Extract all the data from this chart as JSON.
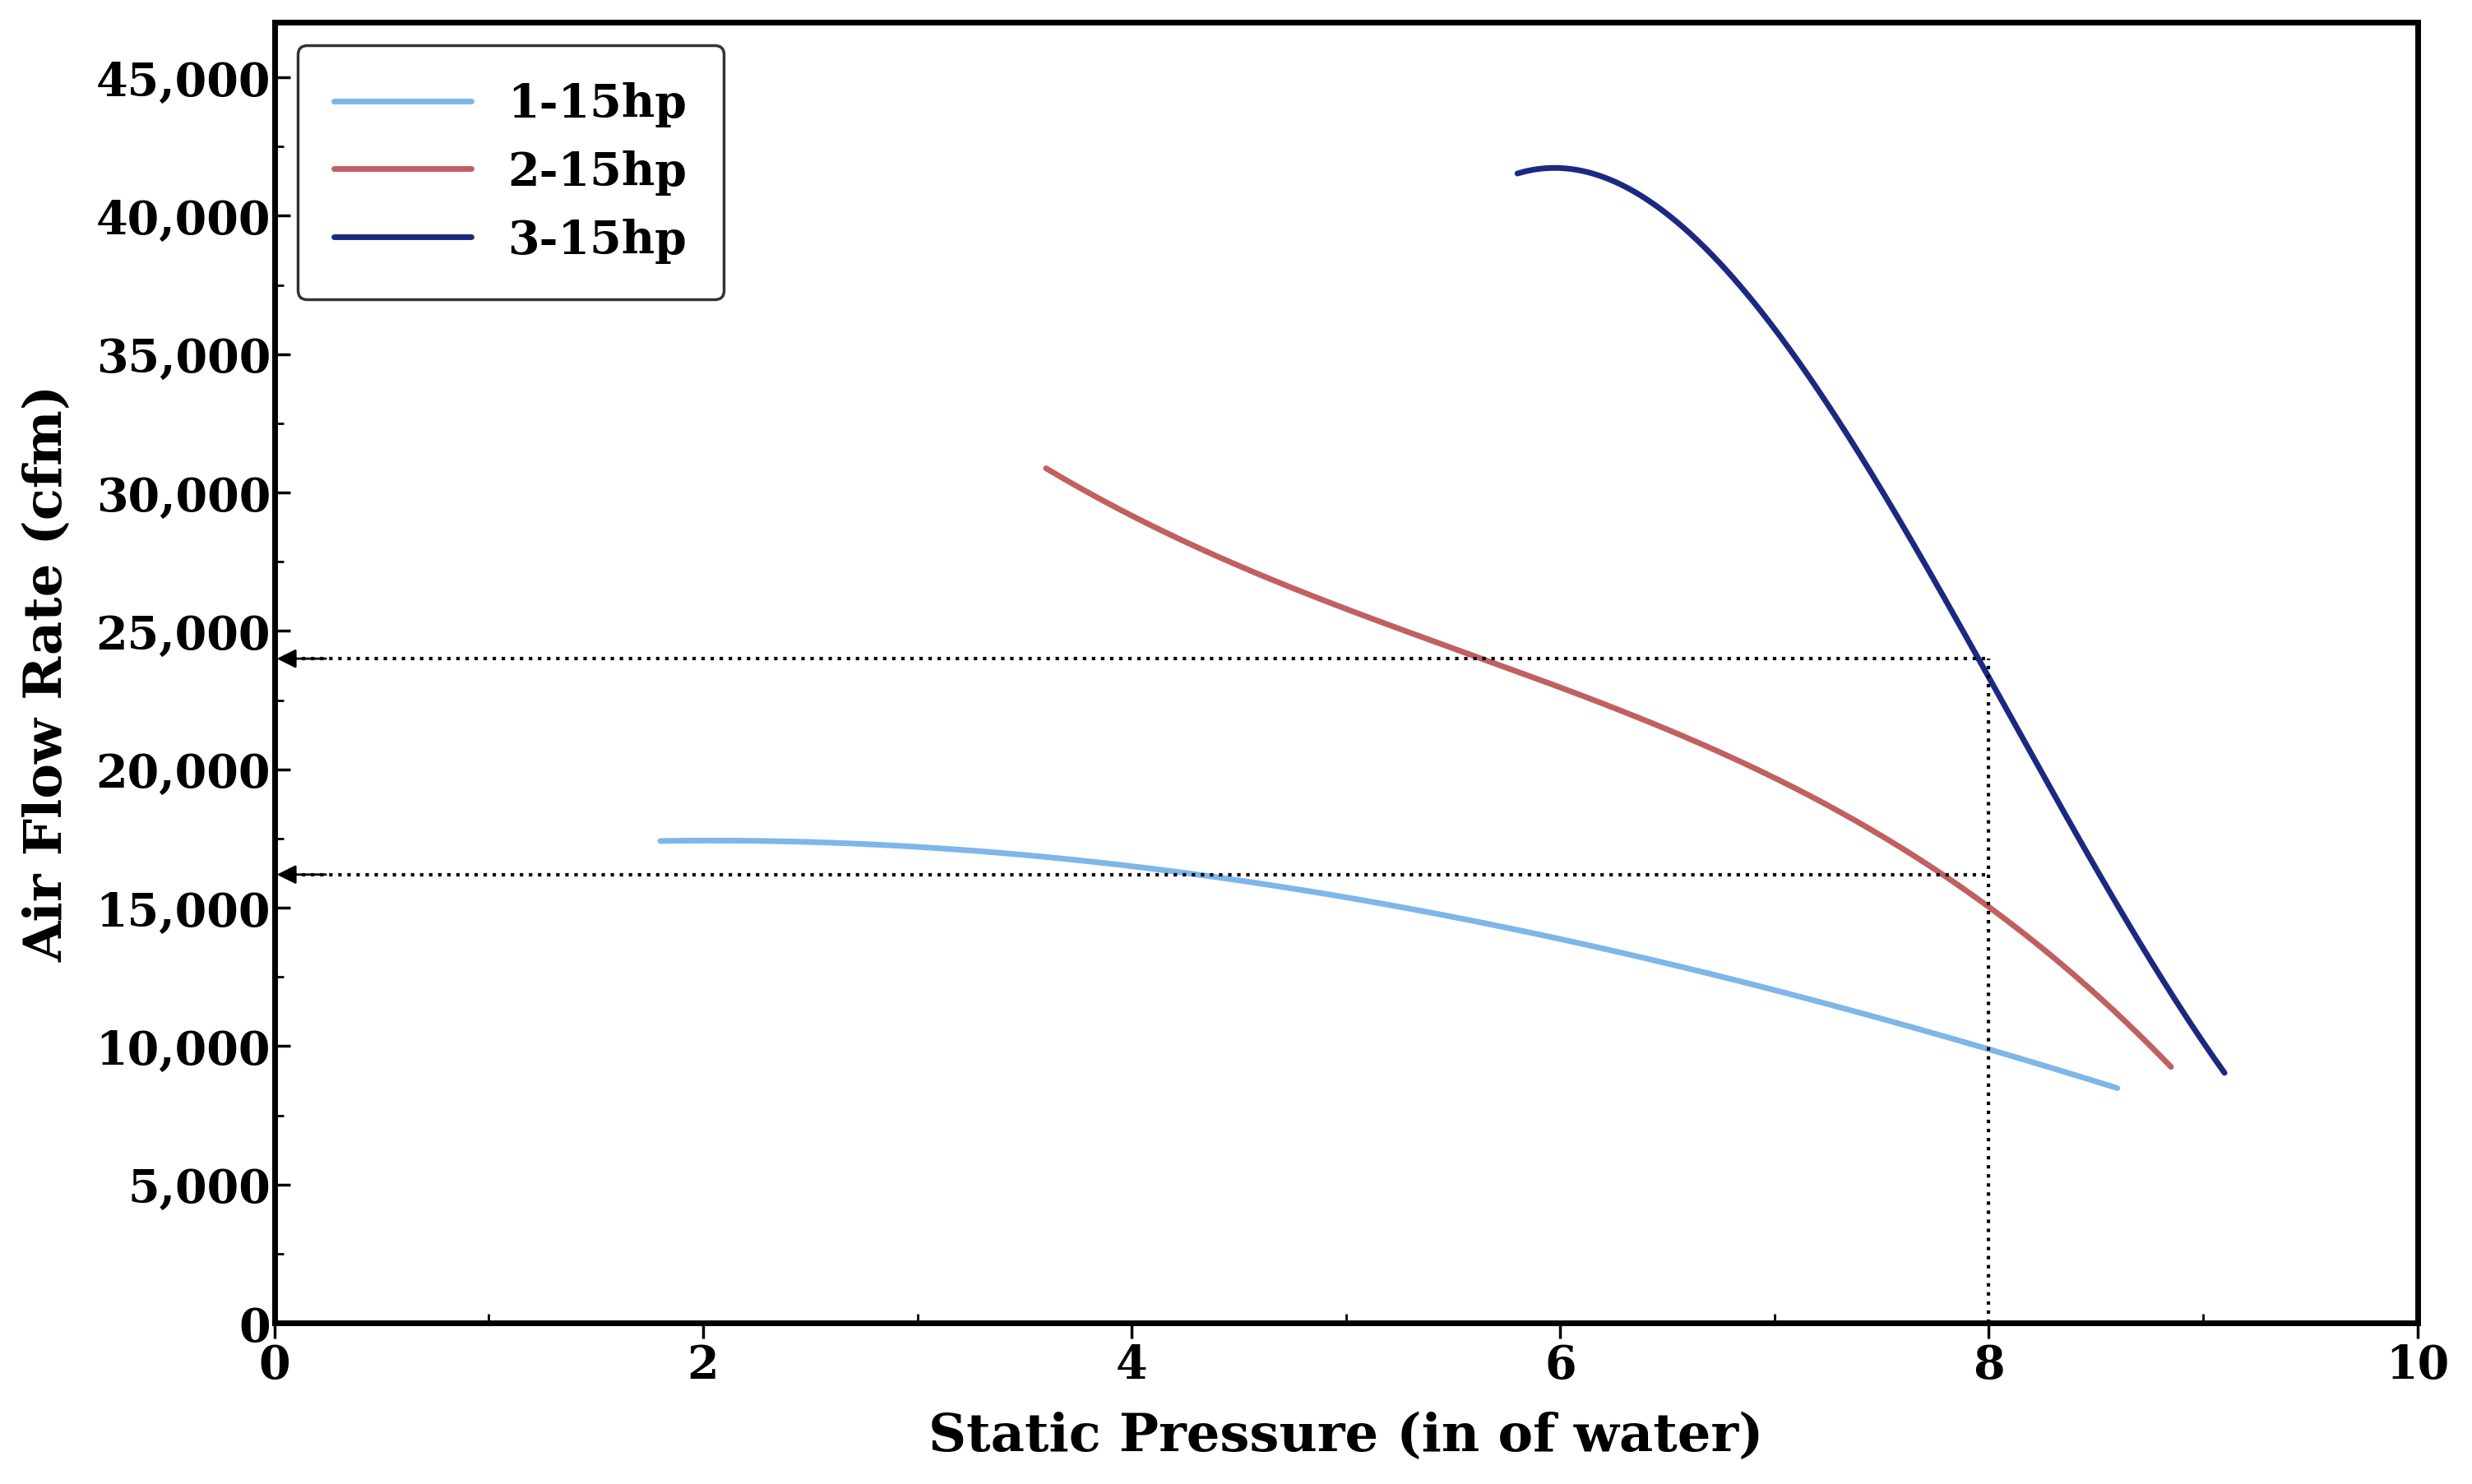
{
  "xlabel": "Static Pressure (in of water)",
  "ylabel": "Air Flow Rate (cfm)",
  "xlim": [
    0,
    10
  ],
  "ylim": [
    0,
    47000
  ],
  "yticks": [
    0,
    5000,
    10000,
    15000,
    20000,
    25000,
    30000,
    35000,
    40000,
    45000
  ],
  "ytick_labels": [
    "0",
    "5,000",
    "10,000",
    "15,000",
    "20,000",
    "25,000",
    "30,000",
    "35,000",
    "40,000",
    "45,000"
  ],
  "xticks": [
    0,
    2,
    4,
    6,
    8,
    10
  ],
  "curve1_color": "#7EB6E8",
  "curve2_color": "#C06060",
  "curve3_color": "#1B2A80",
  "ref_line1_y": 24000,
  "ref_line2_y": 16200,
  "ref_line_x": 8.0,
  "legend_labels": [
    "1-15hp",
    "2-15hp",
    "3-15hp"
  ],
  "background_color": "#ffffff",
  "curve1_x_start": 1.8,
  "curve1_x_end": 8.6,
  "curve2_x_start": 3.6,
  "curve2_x_end": 8.85,
  "curve3_x_start": 5.8,
  "curve3_x_end": 9.1
}
